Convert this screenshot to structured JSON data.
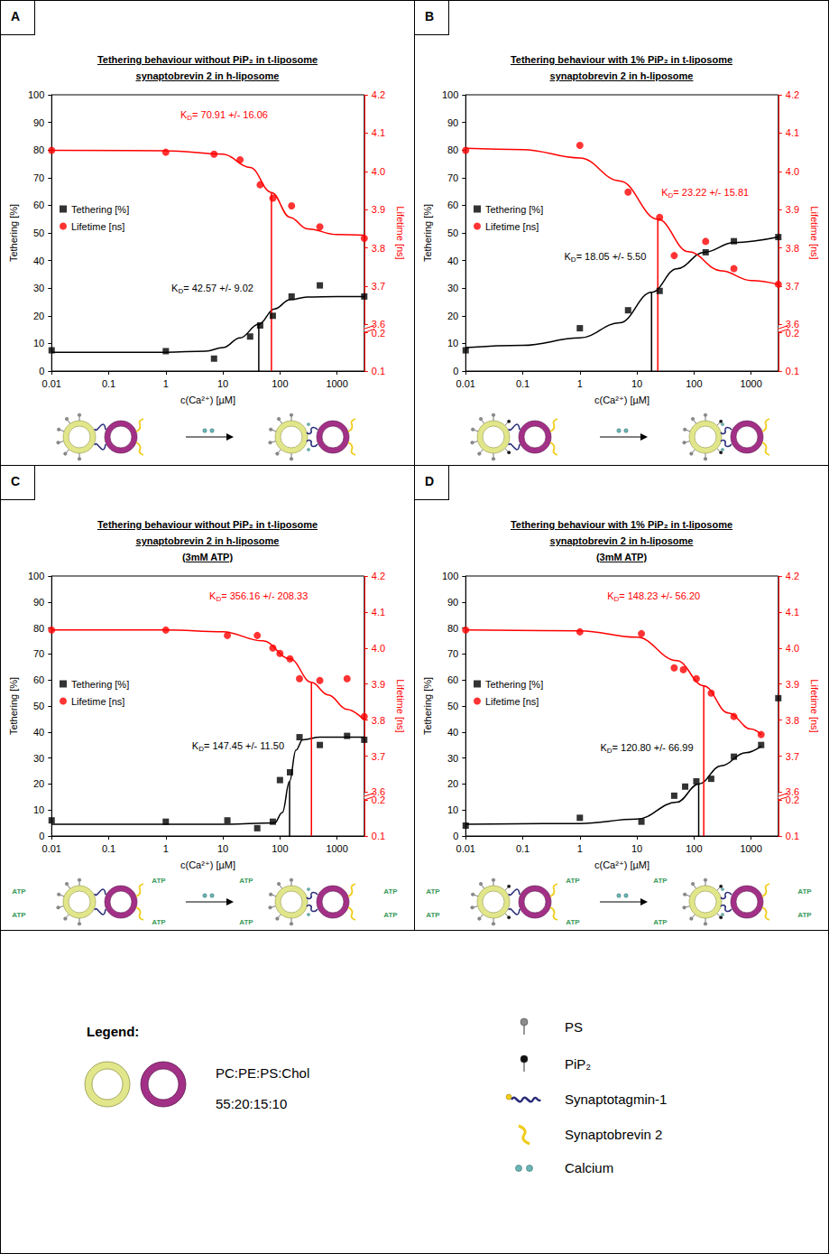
{
  "chart_data": [
    {
      "panel": "A",
      "type": "scatter",
      "title": "Tethering behaviour without PiP₂ in t-liposome",
      "subtitle": [
        "synaptobrevin 2 in h-liposome"
      ],
      "x_label": "c(Ca²⁺) [µM]",
      "y_label": "Tethering [%]",
      "y2_label": "Lifetime [ns]",
      "log": "x",
      "grid": false,
      "legend": "left",
      "xlim": [
        0.01,
        3000
      ],
      "xticks": [
        0.01,
        0.1,
        1,
        10,
        100,
        1000
      ],
      "ylim": [
        0,
        100
      ],
      "yticks": [
        0,
        10,
        20,
        30,
        40,
        50,
        60,
        70,
        80,
        90,
        100
      ],
      "y2lim": [
        0.1,
        4.2
      ],
      "y2ticks": [
        0.1,
        0.2,
        3.6,
        3.7,
        3.8,
        3.9,
        {
          "value": 4,
          "label": "4.0"
        },
        4.1,
        4.2
      ],
      "y2break": [
        0.2,
        3.6
      ],
      "series": [
        {
          "name": "Tethering [%]",
          "color": "#000000",
          "marker": "square",
          "x": [
            0.01,
            1,
            7,
            30,
            45,
            75,
            160,
            500,
            3000
          ],
          "values": [
            7.5,
            7.2,
            4.5,
            12.5,
            16.5,
            20,
            27,
            31,
            27
          ],
          "fit": {
            "type": "line",
            "x": [
              0.01,
              1,
              5,
              10,
              20,
              42.57,
              80,
              150,
              300,
              1000,
              3000
            ],
            "values": [
              6.8,
              6.8,
              7.2,
              8.5,
              12,
              17,
              22.5,
              25.8,
              26.8,
              27,
              27
            ]
          },
          "kd": {
            "value": 42.57,
            "symbol": "K",
            "subscript": "D",
            "text": "= 42.57 +/- 9.02",
            "line_top": 17
          }
        },
        {
          "name": "Lifetime [ns]",
          "color": "#ff0000",
          "marker": "circle",
          "axis": "y2",
          "x": [
            0.01,
            1,
            7,
            20,
            45,
            75,
            160,
            500,
            3000
          ],
          "values": [
            4.055,
            4.05,
            4.045,
            4.03,
            3.965,
            3.93,
            3.91,
            3.855,
            3.825
          ],
          "fit": {
            "type": "line",
            "x": [
              0.01,
              1,
              10,
              30,
              70.91,
              150,
              300,
              1000,
              3000
            ],
            "values": [
              4.055,
              4.054,
              4.045,
              4.01,
              3.945,
              3.88,
              3.85,
              3.835,
              3.833
            ]
          },
          "kd": {
            "value": 70.91,
            "symbol": "K",
            "subscript": "D",
            "text": "= 70.91 +/- 16.06",
            "line_top": 3.945
          }
        }
      ]
    },
    {
      "panel": "B",
      "type": "scatter",
      "title": "Tethering behaviour with 1% PiP₂ in t-liposome",
      "subtitle": [
        "synaptobrevin 2 in h-liposome"
      ],
      "x_label": "c(Ca²⁺) [µM]",
      "y_label": "Tethering [%]",
      "y2_label": "Lifetime [ns]",
      "log": "x",
      "grid": false,
      "legend": "left",
      "xlim": [
        0.01,
        3000
      ],
      "xticks": [
        0.01,
        0.1,
        1,
        10,
        100,
        1000
      ],
      "ylim": [
        0,
        100
      ],
      "yticks": [
        0,
        10,
        20,
        30,
        40,
        50,
        60,
        70,
        80,
        90,
        100
      ],
      "y2lim": [
        0.1,
        4.2
      ],
      "y2ticks": [
        0.1,
        0.2,
        3.6,
        3.7,
        3.8,
        3.9,
        {
          "value": 4,
          "label": "4.0"
        },
        4.1,
        4.2
      ],
      "y2break": [
        0.2,
        3.6
      ],
      "series": [
        {
          "name": "Tethering [%]",
          "color": "#000000",
          "marker": "square",
          "x": [
            0.01,
            1,
            7,
            25,
            160,
            500,
            3000
          ],
          "values": [
            7.5,
            15.5,
            22,
            29,
            43,
            47,
            48.5
          ],
          "fit": {
            "type": "line",
            "x": [
              0.01,
              0.1,
              1,
              5,
              18.05,
              50,
              150,
              500,
              3000
            ],
            "values": [
              8.5,
              9.3,
              12,
              17.5,
              28.5,
              37,
              43,
              46.5,
              48.5
            ]
          },
          "kd": {
            "value": 18.05,
            "symbol": "K",
            "subscript": "D",
            "text": "= 18.05 +/- 5.50",
            "line_top": 28.5
          }
        },
        {
          "name": "Lifetime [ns]",
          "color": "#ff0000",
          "marker": "circle",
          "axis": "y2",
          "x": [
            0.01,
            1,
            7,
            25,
            45,
            160,
            500,
            3000
          ],
          "values": [
            4.055,
            4.068,
            3.946,
            3.88,
            3.78,
            3.817,
            3.746,
            3.705
          ],
          "fit": {
            "type": "line",
            "x": [
              0.01,
              0.1,
              1,
              5,
              23.22,
              80,
              300,
              1000,
              3000
            ],
            "values": [
              4.06,
              4.057,
              4.035,
              3.975,
              3.875,
              3.79,
              3.74,
              3.715,
              3.705
            ]
          },
          "kd": {
            "value": 23.22,
            "symbol": "K",
            "subscript": "D",
            "text": "= 23.22 +/- 15.81",
            "line_top": 3.875
          }
        }
      ]
    },
    {
      "panel": "C",
      "type": "scatter",
      "title": "Tethering behaviour without PiP₂ in t-liposome",
      "subtitle": [
        "synaptobrevin 2 in h-liposome",
        "(3mM ATP)"
      ],
      "x_label": "c(Ca²⁺) [µM]",
      "y_label": "Tethering [%]",
      "y2_label": "Lifetime [ns]",
      "log": "x",
      "grid": false,
      "legend": "left",
      "xlim": [
        0.01,
        3000
      ],
      "xticks": [
        0.01,
        0.1,
        1,
        10,
        100,
        1000
      ],
      "ylim": [
        0,
        100
      ],
      "yticks": [
        0,
        10,
        20,
        30,
        40,
        50,
        60,
        70,
        80,
        90,
        100
      ],
      "y2lim": [
        0.1,
        4.2
      ],
      "y2ticks": [
        0.1,
        0.2,
        3.6,
        3.7,
        3.8,
        3.9,
        {
          "value": 4,
          "label": "4.0"
        },
        4.1,
        4.2
      ],
      "y2break": [
        0.2,
        3.6
      ],
      "schematic_label": "ATP",
      "series": [
        {
          "name": "Tethering [%]",
          "color": "#000000",
          "marker": "square",
          "x": [
            0.01,
            1,
            12,
            40,
            75,
            100,
            150,
            220,
            500,
            1500,
            3000
          ],
          "values": [
            6,
            5.5,
            6,
            3,
            5.5,
            21.5,
            24.5,
            38,
            35,
            38.5,
            37
          ],
          "fit": {
            "type": "line",
            "x": [
              0.01,
              10,
              80,
              110,
              147.45,
              190,
              250,
              500,
              3000
            ],
            "values": [
              4.5,
              4.5,
              5,
              9,
              21,
              33,
              37,
              38,
              38
            ]
          },
          "kd": {
            "value": 147.45,
            "symbol": "K",
            "subscript": "D",
            "text": "= 147.45 +/- 11.50",
            "line_top": 21
          }
        },
        {
          "name": "Lifetime [ns]",
          "color": "#ff0000",
          "marker": "circle",
          "axis": "y2",
          "x": [
            0.01,
            1,
            12,
            40,
            75,
            100,
            150,
            220,
            500,
            1500,
            3000
          ],
          "values": [
            4.05,
            4.05,
            4.035,
            4.035,
            4.0,
            3.985,
            3.97,
            3.915,
            3.91,
            3.915,
            3.81
          ],
          "fit": {
            "type": "line",
            "x": [
              0.01,
              1,
              10,
              50,
              150,
              356.16,
              700,
              1500,
              3000
            ],
            "values": [
              4.05,
              4.05,
              4.045,
              4.02,
              3.97,
              3.905,
              3.87,
              3.83,
              3.8
            ]
          },
          "kd": {
            "value": 356.16,
            "symbol": "K",
            "subscript": "D",
            "text": "= 356.16 +/- 208.33",
            "line_top": 3.905
          }
        }
      ]
    },
    {
      "panel": "D",
      "type": "scatter",
      "title": "Tethering behaviour with 1% PiP₂ in t-liposome",
      "subtitle": [
        "synaptobrevin 2 in h-liposome",
        "(3mM ATP)"
      ],
      "x_label": "c(Ca²⁺) [µM]",
      "y_label": "Tethering [%]",
      "y2_label": "Lifetime [ns]",
      "log": "x",
      "grid": false,
      "legend": "left",
      "xlim": [
        0.01,
        3000
      ],
      "xticks": [
        0.01,
        0.1,
        1,
        10,
        100,
        1000
      ],
      "ylim": [
        0,
        100
      ],
      "yticks": [
        0,
        10,
        20,
        30,
        40,
        50,
        60,
        70,
        80,
        90,
        100
      ],
      "y2lim": [
        0.1,
        4.2
      ],
      "y2ticks": [
        0.1,
        0.2,
        3.6,
        3.7,
        3.8,
        3.9,
        {
          "value": 4,
          "label": "4.0"
        },
        4.1,
        4.2
      ],
      "y2break": [
        0.2,
        3.6
      ],
      "schematic_label": "ATP",
      "series": [
        {
          "name": "Tethering [%]",
          "color": "#000000",
          "marker": "square",
          "x": [
            0.01,
            1,
            12,
            45,
            70,
            110,
            200,
            500,
            1500,
            3000
          ],
          "values": [
            4,
            7,
            5.5,
            15.5,
            19,
            21,
            22,
            30.5,
            35,
            53
          ],
          "fit": {
            "type": "line",
            "x": [
              0.01,
              1,
              10,
              50,
              120.8,
              300,
              800,
              1500
            ],
            "values": [
              4.5,
              4.8,
              6.5,
              13,
              20,
              27,
              32,
              34.5
            ]
          },
          "kd": {
            "value": 120.8,
            "symbol": "K",
            "subscript": "D",
            "text": "= 120.80 +/- 66.99",
            "line_top": 20
          }
        },
        {
          "name": "Lifetime [ns]",
          "color": "#ff0000",
          "marker": "circle",
          "axis": "y2",
          "x": [
            0.01,
            1,
            12,
            45,
            65,
            110,
            200,
            500,
            1500
          ],
          "values": [
            4.05,
            4.045,
            4.04,
            3.945,
            3.94,
            3.915,
            3.875,
            3.81,
            3.76
          ],
          "fit": {
            "type": "line",
            "x": [
              0.01,
              1,
              10,
              50,
              148.23,
              400,
              1000,
              1500
            ],
            "values": [
              4.05,
              4.048,
              4.03,
              3.965,
              3.895,
              3.82,
              3.775,
              3.76
            ]
          },
          "kd": {
            "value": 148.23,
            "symbol": "K",
            "subscript": "D",
            "text": "= 148.23 +/- 56.20",
            "line_top": 3.895
          }
        }
      ]
    }
  ],
  "legend_panel": {
    "title": "Legend:",
    "composition": [
      "PC:PE:PS:Chol",
      "55:20:15:10"
    ],
    "items": [
      "PS",
      "PiP₂",
      "Synaptotagmin-1",
      "Synaptobrevin 2",
      "Calcium"
    ]
  }
}
